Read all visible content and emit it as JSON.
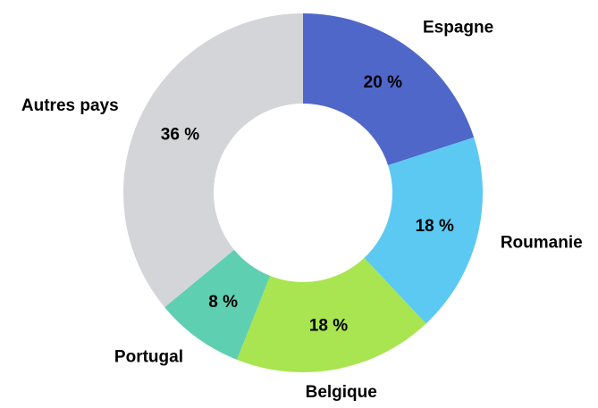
{
  "chart_data": {
    "type": "donut",
    "categories": [
      "Espagne",
      "Roumanie",
      "Belgique",
      "Portugal",
      "Autres pays"
    ],
    "values": [
      20,
      18,
      18,
      8,
      36
    ],
    "value_labels": [
      "20 %",
      "18 %",
      "18 %",
      "8 %",
      "36 %"
    ],
    "colors": [
      "#4f67c9",
      "#5bc9f2",
      "#a8e550",
      "#5fcfb1",
      "#d4d5d8"
    ]
  }
}
